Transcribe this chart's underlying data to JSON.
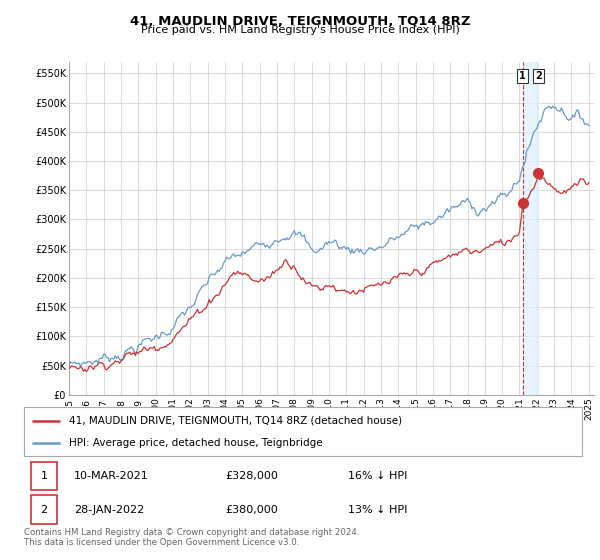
{
  "title": "41, MAUDLIN DRIVE, TEIGNMOUTH, TQ14 8RZ",
  "subtitle": "Price paid vs. HM Land Registry's House Price Index (HPI)",
  "ylabel_ticks": [
    "£0",
    "£50K",
    "£100K",
    "£150K",
    "£200K",
    "£250K",
    "£300K",
    "£350K",
    "£400K",
    "£450K",
    "£500K",
    "£550K"
  ],
  "ytick_values": [
    0,
    50000,
    100000,
    150000,
    200000,
    250000,
    300000,
    350000,
    400000,
    450000,
    500000,
    550000
  ],
  "ylim": [
    0,
    570000
  ],
  "xlim_start": 1995.3,
  "xlim_end": 2025.3,
  "x_ticks": [
    1995,
    1996,
    1997,
    1998,
    1999,
    2000,
    2001,
    2002,
    2003,
    2004,
    2005,
    2006,
    2007,
    2008,
    2009,
    2010,
    2011,
    2012,
    2013,
    2014,
    2015,
    2016,
    2017,
    2018,
    2019,
    2020,
    2021,
    2022,
    2023,
    2024,
    2025
  ],
  "hpi_color": "#6699cc",
  "price_color": "#cc3333",
  "vline_color": "#cc3333",
  "sale1_x": 2021.19,
  "sale1_y": 328000,
  "sale2_x": 2022.08,
  "sale2_y": 380000,
  "legend_line1": "41, MAUDLIN DRIVE, TEIGNMOUTH, TQ14 8RZ (detached house)",
  "legend_line2": "HPI: Average price, detached house, Teignbridge",
  "footnote": "Contains HM Land Registry data © Crown copyright and database right 2024.\nThis data is licensed under the Open Government Licence v3.0.",
  "bg_color": "#ffffff",
  "grid_color": "#cccccc"
}
